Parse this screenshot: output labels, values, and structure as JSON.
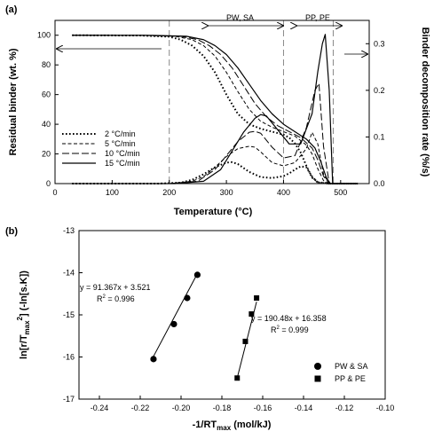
{
  "chart_data": [
    {
      "panel_label": "(a)",
      "type": "line",
      "xlabel": "Temperature (°C)",
      "ylabel": "Residual binder (wt. %)",
      "ylabel_right": "Binder decomposition rate (%/s)",
      "xlim": [
        0,
        550
      ],
      "ylim": [
        0,
        110
      ],
      "ylim_right": [
        0,
        0.35
      ],
      "xticks": [
        "0",
        "100",
        "200",
        "300",
        "400",
        "500"
      ],
      "yticks": [
        "0",
        "20",
        "40",
        "60",
        "80",
        "100"
      ],
      "yticks_right": [
        "0.0",
        "0.1",
        "0.2",
        "0.3"
      ],
      "region_lines_x": [
        200,
        400,
        487
      ],
      "regions": [
        {
          "label": "PW, SA",
          "from": 200,
          "to": 400
        },
        {
          "label": "PP, PE",
          "from": 400,
          "to": 487
        }
      ],
      "legend_position": "lower-left",
      "series": [
        {
          "name": "2 °C/min",
          "dash": "dotted",
          "residual": {
            "x": [
              30,
              150,
              200,
              220,
              240,
              260,
              280,
              300,
              320,
              340,
              360,
              380,
              400,
              410,
              420,
              430,
              440,
              450,
              460,
              480,
              530
            ],
            "y": [
              100,
              99.8,
              99,
              97,
              93,
              86,
              75,
              60,
              47,
              40,
              37,
              35,
              33,
              31,
              27,
              21,
              12,
              4,
              1,
              0,
              0
            ]
          },
          "rate": {
            "x": [
              30,
              180,
              220,
              240,
              260,
              280,
              300,
              310,
              320,
              340,
              360,
              380,
              400,
              410,
              420,
              430,
              440,
              450,
              460,
              480,
              530
            ],
            "y": [
              0,
              0,
              0.002,
              0.008,
              0.02,
              0.035,
              0.045,
              0.046,
              0.042,
              0.025,
              0.014,
              0.012,
              0.016,
              0.022,
              0.03,
              0.037,
              0.035,
              0.015,
              0.002,
              0,
              0
            ]
          }
        },
        {
          "name": "5 °C/min",
          "dash": "short-dash",
          "residual": {
            "x": [
              30,
              150,
              210,
              240,
              260,
              280,
              300,
              320,
              340,
              360,
              380,
              400,
              420,
              440,
              450,
              460,
              470,
              480,
              530
            ],
            "y": [
              100,
              99.9,
              99.3,
              97,
              93,
              86,
              75,
              62,
              50,
              42,
              38,
              35,
              32,
              26,
              20,
              10,
              2,
              0,
              0
            ]
          },
          "rate": {
            "x": [
              30,
              200,
              240,
              260,
              280,
              300,
              320,
              340,
              350,
              360,
              380,
              400,
              420,
              440,
              450,
              460,
              470,
              480,
              530
            ],
            "y": [
              0,
              0,
              0.005,
              0.015,
              0.035,
              0.058,
              0.075,
              0.08,
              0.078,
              0.068,
              0.045,
              0.038,
              0.045,
              0.075,
              0.11,
              0.085,
              0.02,
              0,
              0
            ]
          }
        },
        {
          "name": "10 °C/min",
          "dash": "long-dash",
          "residual": {
            "x": [
              30,
              160,
              220,
              250,
              270,
              290,
              310,
              330,
              350,
              370,
              390,
              410,
              430,
              450,
              460,
              470,
              480,
              530
            ],
            "y": [
              100,
              99.9,
              99.3,
              97,
              93,
              87,
              78,
              66,
              54,
              45,
              39,
              35,
              31,
              24,
              16,
              5,
              0,
              0
            ]
          },
          "rate": {
            "x": [
              30,
              200,
              250,
              280,
              300,
              320,
              340,
              350,
              360,
              380,
              400,
              420,
              440,
              455,
              462,
              470,
              480,
              530
            ],
            "y": [
              0,
              0,
              0.005,
              0.03,
              0.06,
              0.09,
              0.11,
              0.112,
              0.108,
              0.078,
              0.055,
              0.06,
              0.12,
              0.2,
              0.215,
              0.08,
              0,
              0
            ]
          }
        },
        {
          "name": "15 °C/min",
          "dash": "solid",
          "residual": {
            "x": [
              30,
              170,
              230,
              260,
              280,
              300,
              320,
              340,
              360,
              380,
              400,
              420,
              440,
              455,
              465,
              475,
              482,
              530
            ],
            "y": [
              100,
              99.9,
              99.3,
              97,
              93,
              87,
              78,
              67,
              56,
              47,
              40,
              35,
              30,
              24,
              15,
              4,
              0,
              0
            ]
          },
          "rate": {
            "x": [
              30,
              210,
              260,
              290,
              310,
              330,
              350,
              360,
              370,
              390,
              410,
              430,
              450,
              460,
              468,
              473,
              480,
              486,
              530
            ],
            "y": [
              0,
              0,
              0.005,
              0.03,
              0.07,
              0.11,
              0.14,
              0.148,
              0.145,
              0.115,
              0.085,
              0.085,
              0.15,
              0.24,
              0.3,
              0.32,
              0.2,
              0,
              0
            ]
          }
        }
      ]
    },
    {
      "panel_label": "(b)",
      "type": "scatter",
      "xlabel": "-1/RT",
      "xlabel_sub": "max",
      "xlabel_unit": " (mol/kJ)",
      "ylabel": "ln[r/T",
      "ylabel_sub": "max",
      "ylabel_sup": "2",
      "ylabel_tail": "] (-ln[s.K])",
      "xlim": [
        -0.25,
        -0.1
      ],
      "ylim": [
        -17,
        -13
      ],
      "xticks": [
        "-0.24",
        "-0.22",
        "-0.20",
        "-0.18",
        "-0.16",
        "-0.14",
        "-0.12",
        "-0.10"
      ],
      "yticks": [
        "-17",
        "-16",
        "-15",
        "-14",
        "-13"
      ],
      "legend_position": "lower-right",
      "series": [
        {
          "name": "PW & SA",
          "marker": "circle",
          "x": [
            -0.2135,
            -0.2035,
            -0.197,
            -0.192
          ],
          "y": [
            -16.05,
            -15.22,
            -14.6,
            -14.05
          ],
          "fit": {
            "slope": 91.367,
            "intercept": 3.521
          },
          "fit_equation": "y = 91.367x + 3.521",
          "r2_text": "R",
          "r2_sup": "2",
          "r2_value": " = 0.996"
        },
        {
          "name": "PP & PE",
          "marker": "square",
          "x": [
            -0.1725,
            -0.1685,
            -0.1655,
            -0.163
          ],
          "y": [
            -16.5,
            -15.63,
            -14.98,
            -14.6
          ],
          "fit": {
            "slope": 190.48,
            "intercept": 16.358
          },
          "fit_equation": "y = 190.48x + 16.358",
          "r2_text": "R",
          "r2_sup": "2",
          "r2_value": " = 0.999"
        }
      ]
    }
  ]
}
